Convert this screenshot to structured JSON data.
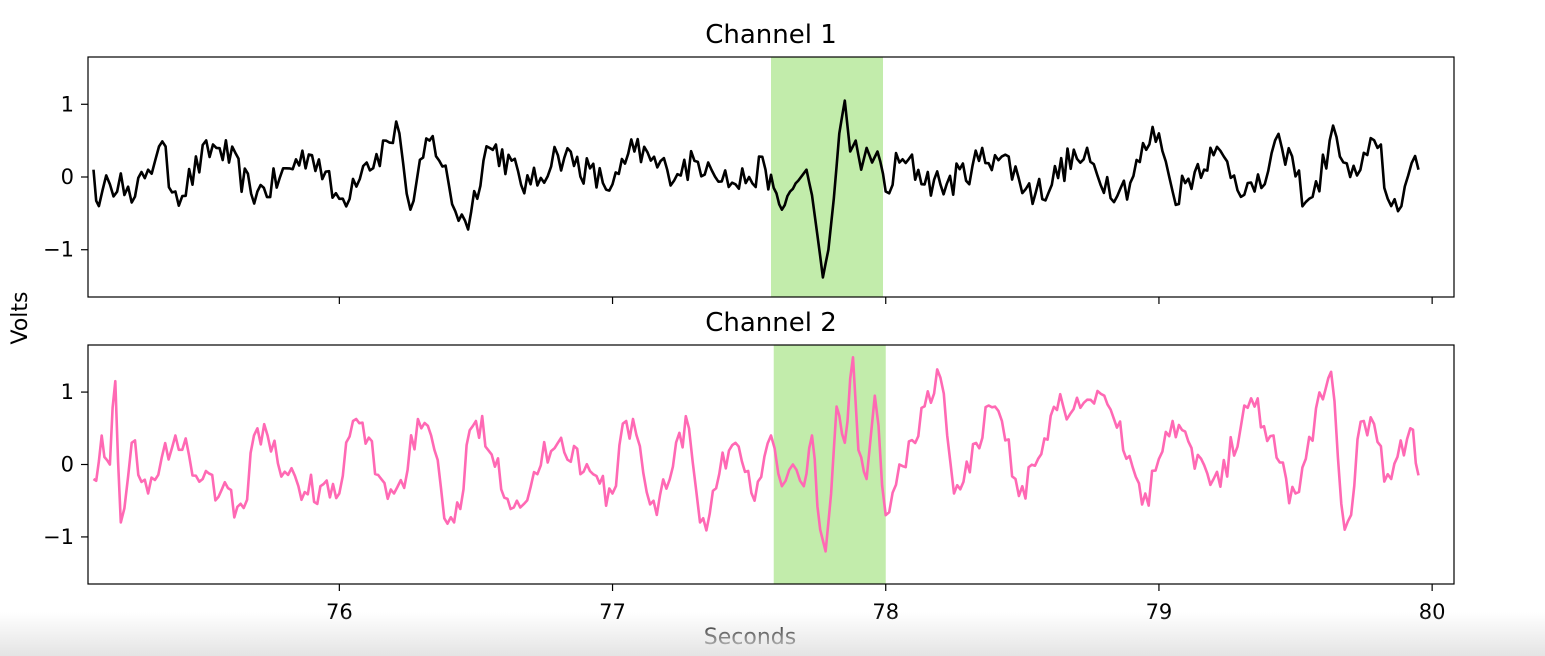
{
  "chart_data": {
    "type": "line",
    "ylabel": "Volts",
    "xlabel": "Seconds",
    "xlim": [
      75.08,
      80.08
    ],
    "xticks": [
      76,
      77,
      78,
      79,
      80
    ],
    "xtick_labels": [
      "76",
      "77",
      "78",
      "79",
      "80"
    ],
    "ylim": [
      -1.65,
      1.65
    ],
    "yticks": [
      1,
      0,
      -1
    ],
    "ytick_labels": [
      "1",
      "0",
      "−1"
    ],
    "panels": [
      {
        "title": "Channel 1",
        "color": "#000000",
        "highlight": {
          "x_start": 77.58,
          "x_end": 77.99,
          "color": "#c2ecab"
        },
        "keypoints": [
          [
            75.1,
            0.1
          ],
          [
            75.12,
            -0.4
          ],
          [
            75.16,
            -0.1
          ],
          [
            75.2,
            0.05
          ],
          [
            75.24,
            -0.35
          ],
          [
            75.3,
            0.1
          ],
          [
            75.34,
            0.42
          ],
          [
            75.4,
            -0.2
          ],
          [
            75.55,
            0.4
          ],
          [
            75.7,
            -0.2
          ],
          [
            75.9,
            0.3
          ],
          [
            76.0,
            -0.3
          ],
          [
            76.1,
            0.2
          ],
          [
            76.22,
            0.6
          ],
          [
            76.26,
            -0.45
          ],
          [
            76.33,
            0.5
          ],
          [
            76.46,
            -0.6
          ],
          [
            76.55,
            0.4
          ],
          [
            76.7,
            -0.1
          ],
          [
            76.8,
            0.3
          ],
          [
            77.0,
            -0.1
          ],
          [
            77.08,
            0.35
          ],
          [
            77.2,
            0.1
          ],
          [
            77.35,
            0.2
          ],
          [
            77.45,
            -0.1
          ],
          [
            77.5,
            0.0
          ],
          [
            77.56,
            0.1
          ],
          [
            77.59,
            -0.15
          ],
          [
            77.62,
            -0.45
          ],
          [
            77.65,
            -0.2
          ],
          [
            77.68,
            -0.05
          ],
          [
            77.71,
            0.1
          ],
          [
            77.73,
            -0.25
          ],
          [
            77.75,
            -0.8
          ],
          [
            77.77,
            -1.38
          ],
          [
            77.79,
            -1.0
          ],
          [
            77.81,
            -0.3
          ],
          [
            77.83,
            0.6
          ],
          [
            77.85,
            1.05
          ],
          [
            77.87,
            0.35
          ],
          [
            77.89,
            0.5
          ],
          [
            77.91,
            0.1
          ],
          [
            77.93,
            0.4
          ],
          [
            77.95,
            0.2
          ],
          [
            77.97,
            0.35
          ],
          [
            78.0,
            -0.2
          ],
          [
            78.05,
            0.2
          ],
          [
            78.2,
            -0.1
          ],
          [
            78.4,
            0.3
          ],
          [
            78.55,
            -0.2
          ],
          [
            78.7,
            0.25
          ],
          [
            78.86,
            -0.15
          ],
          [
            79.0,
            0.6
          ],
          [
            79.05,
            -0.2
          ],
          [
            79.2,
            0.3
          ],
          [
            79.35,
            -0.2
          ],
          [
            79.45,
            0.4
          ],
          [
            79.55,
            -0.3
          ],
          [
            79.65,
            0.55
          ],
          [
            79.7,
            0.0
          ],
          [
            79.8,
            0.4
          ],
          [
            79.85,
            -0.4
          ],
          [
            79.95,
            0.1
          ]
        ]
      },
      {
        "title": "Channel 2",
        "color": "#ff69b4",
        "highlight": {
          "x_start": 77.59,
          "x_end": 78.0,
          "color": "#c2ecab"
        },
        "keypoints": [
          [
            75.1,
            -0.2
          ],
          [
            75.13,
            0.4
          ],
          [
            75.16,
            0.0
          ],
          [
            75.18,
            1.15
          ],
          [
            75.2,
            -0.8
          ],
          [
            75.24,
            0.3
          ],
          [
            75.3,
            -0.4
          ],
          [
            75.4,
            0.4
          ],
          [
            75.5,
            -0.2
          ],
          [
            75.65,
            -0.6
          ],
          [
            75.7,
            0.5
          ],
          [
            75.85,
            -0.3
          ],
          [
            76.0,
            -0.4
          ],
          [
            76.05,
            0.6
          ],
          [
            76.2,
            -0.4
          ],
          [
            76.3,
            0.5
          ],
          [
            76.42,
            -0.8
          ],
          [
            76.5,
            0.6
          ],
          [
            76.65,
            -0.5
          ],
          [
            76.8,
            0.3
          ],
          [
            77.0,
            -0.4
          ],
          [
            77.05,
            0.6
          ],
          [
            77.15,
            -0.5
          ],
          [
            77.28,
            0.5
          ],
          [
            77.32,
            -0.8
          ],
          [
            77.45,
            0.3
          ],
          [
            77.52,
            -0.5
          ],
          [
            77.58,
            0.4
          ],
          [
            77.62,
            -0.3
          ],
          [
            77.66,
            0.0
          ],
          [
            77.7,
            -0.3
          ],
          [
            77.73,
            0.4
          ],
          [
            77.76,
            -0.9
          ],
          [
            77.78,
            -1.2
          ],
          [
            77.8,
            -0.4
          ],
          [
            77.82,
            0.8
          ],
          [
            77.85,
            0.3
          ],
          [
            77.88,
            1.48
          ],
          [
            77.9,
            0.2
          ],
          [
            77.93,
            -0.2
          ],
          [
            77.96,
            0.95
          ],
          [
            78.0,
            -0.7
          ],
          [
            78.05,
            0.0
          ],
          [
            78.2,
            1.2
          ],
          [
            78.25,
            -0.4
          ],
          [
            78.4,
            0.8
          ],
          [
            78.5,
            -0.3
          ],
          [
            78.65,
            0.8
          ],
          [
            78.8,
            0.95
          ],
          [
            78.95,
            -0.4
          ],
          [
            79.05,
            0.6
          ],
          [
            79.2,
            -0.2
          ],
          [
            79.35,
            0.8
          ],
          [
            79.5,
            -0.4
          ],
          [
            79.6,
            0.9
          ],
          [
            79.63,
            1.28
          ],
          [
            79.68,
            -0.9
          ],
          [
            79.75,
            0.6
          ],
          [
            79.85,
            -0.2
          ],
          [
            79.92,
            0.5
          ],
          [
            79.95,
            -0.15
          ]
        ]
      }
    ]
  }
}
